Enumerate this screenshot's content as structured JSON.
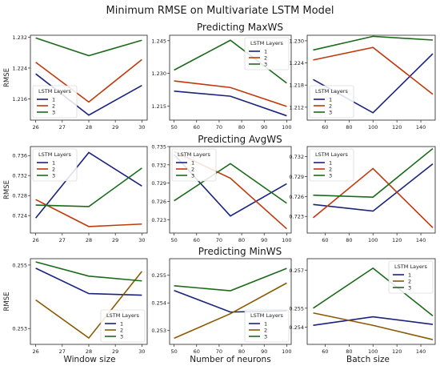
{
  "title": "Minimum RMSE on Multivariate LSTM Model",
  "row_titles": [
    "Predicting MaxWS",
    "Predicting AvgWS",
    "Predicting MinWS"
  ],
  "xlabels": [
    "Window size",
    "Number of neurons",
    "Batch size"
  ],
  "ylabel": "RMSE",
  "legend_title": "LSTM Layers",
  "colors": {
    "1": "#1a237e",
    "2": "#c0390b",
    "3": "#1b6b1b"
  },
  "colors_row3": {
    "1": "#1a237e",
    "2": "#8b5a00",
    "3": "#1b6b1b"
  },
  "chart_data": [
    {
      "type": "line",
      "row": 0,
      "col": 0,
      "x": [
        26,
        28,
        30
      ],
      "xlim": [
        25.8,
        30.2
      ],
      "ylim": [
        1.2105,
        1.2325
      ],
      "yticks": [
        "1.216",
        "1.224",
        "1.232"
      ],
      "xticks": [
        "26",
        "27",
        "28",
        "29",
        "30"
      ],
      "legend": "lower-left",
      "series": [
        {
          "name": "1",
          "values": [
            1.2225,
            1.2118,
            1.2195
          ]
        },
        {
          "name": "2",
          "values": [
            1.2255,
            1.2152,
            1.2262
          ]
        },
        {
          "name": "3",
          "values": [
            1.2318,
            1.2272,
            1.2312
          ]
        }
      ]
    },
    {
      "type": "line",
      "row": 0,
      "col": 1,
      "x": [
        50,
        75,
        100
      ],
      "xlim": [
        48,
        102
      ],
      "ylim": [
        1.2085,
        1.2475
      ],
      "yticks": [
        "1.215",
        "1.230",
        "1.245"
      ],
      "xticks": [
        "50",
        "60",
        "70",
        "80",
        "90",
        "100"
      ],
      "legend": "upper-right",
      "series": [
        {
          "name": "1",
          "values": [
            1.2218,
            1.2195,
            1.2105
          ]
        },
        {
          "name": "2",
          "values": [
            1.2265,
            1.2235,
            1.2148
          ]
        },
        {
          "name": "3",
          "values": [
            1.2315,
            1.2452,
            1.2255
          ]
        }
      ]
    },
    {
      "type": "line",
      "row": 0,
      "col": 2,
      "x": [
        50,
        100,
        150
      ],
      "xlim": [
        45,
        152
      ],
      "ylim": [
        1.2085,
        1.2315
      ],
      "yticks": [
        "1.212",
        "1.218",
        "1.224",
        "1.230"
      ],
      "xticks": [
        "60",
        "80",
        "100",
        "120",
        "140"
      ],
      "legend": "lower-left",
      "series": [
        {
          "name": "1",
          "values": [
            1.2195,
            1.2105,
            1.2265
          ]
        },
        {
          "name": "2",
          "values": [
            1.2248,
            1.2282,
            1.2155
          ]
        },
        {
          "name": "3",
          "values": [
            1.2275,
            1.2312,
            1.2302
          ]
        }
      ]
    },
    {
      "type": "line",
      "row": 1,
      "col": 0,
      "x": [
        26,
        28,
        30
      ],
      "xlim": [
        25.8,
        30.2
      ],
      "ylim": [
        0.7205,
        0.7378
      ],
      "yticks": [
        "0.724",
        "0.728",
        "0.732",
        "0.736"
      ],
      "xticks": [
        "26",
        "27",
        "28",
        "29",
        "30"
      ],
      "legend": "upper-left",
      "series": [
        {
          "name": "1",
          "values": [
            0.7235,
            0.7366,
            0.7299
          ]
        },
        {
          "name": "2",
          "values": [
            0.7272,
            0.7218,
            0.7223
          ]
        },
        {
          "name": "3",
          "values": [
            0.7261,
            0.7258,
            0.7335
          ]
        }
      ]
    },
    {
      "type": "line",
      "row": 1,
      "col": 1,
      "x": [
        50,
        75,
        100
      ],
      "xlim": [
        48,
        102
      ],
      "ylim": [
        0.7208,
        0.735
      ],
      "yticks": [
        "0.723",
        "0.726",
        "0.729",
        "0.732",
        "0.735"
      ],
      "xticks": [
        "50",
        "60",
        "70",
        "80",
        "90",
        "100"
      ],
      "legend": "upper-left",
      "series": [
        {
          "name": "1",
          "values": [
            0.7337,
            0.7236,
            0.7289
          ]
        },
        {
          "name": "2",
          "values": [
            0.7342,
            0.7298,
            0.7215
          ]
        },
        {
          "name": "3",
          "values": [
            0.7261,
            0.7322,
            0.7257
          ]
        }
      ]
    },
    {
      "type": "line",
      "row": 1,
      "col": 2,
      "x": [
        50,
        100,
        150
      ],
      "xlim": [
        45,
        152
      ],
      "ylim": [
        0.7205,
        0.7335
      ],
      "yticks": [
        "0.723",
        "0.726",
        "0.729",
        "0.732"
      ],
      "xticks": [
        "60",
        "80",
        "100",
        "120",
        "140"
      ],
      "legend": "upper-left",
      "series": [
        {
          "name": "1",
          "values": [
            0.7248,
            0.7238,
            0.7309
          ]
        },
        {
          "name": "2",
          "values": [
            0.7228,
            0.7302,
            0.7213
          ]
        },
        {
          "name": "3",
          "values": [
            0.7262,
            0.7259,
            0.7332
          ]
        }
      ]
    },
    {
      "type": "line",
      "row": 2,
      "col": 0,
      "x": [
        26,
        28,
        30
      ],
      "xlim": [
        25.8,
        30.2
      ],
      "ylim": [
        0.2525,
        0.2552
      ],
      "yticks": [
        "0.253",
        "0.255"
      ],
      "xticks": [
        "26",
        "27",
        "28",
        "29",
        "30"
      ],
      "legend": "lower-right",
      "series": [
        {
          "name": "1",
          "values": [
            0.2549,
            0.2541,
            0.25405
          ]
        },
        {
          "name": "2",
          "values": [
            0.2539,
            0.2527,
            0.2548
          ]
        },
        {
          "name": "3",
          "values": [
            0.2551,
            0.25465,
            0.2545
          ]
        }
      ]
    },
    {
      "type": "line",
      "row": 2,
      "col": 1,
      "x": [
        50,
        75,
        100
      ],
      "xlim": [
        48,
        102
      ],
      "ylim": [
        0.2525,
        0.2556
      ],
      "yticks": [
        "0.253",
        "0.254",
        "0.255"
      ],
      "xticks": [
        "50",
        "60",
        "70",
        "80",
        "90",
        "100"
      ],
      "legend": "lower-right",
      "series": [
        {
          "name": "1",
          "values": [
            0.25445,
            0.25367,
            0.25371
          ]
        },
        {
          "name": "2",
          "values": [
            0.25272,
            0.25361,
            0.25472
          ]
        },
        {
          "name": "3",
          "values": [
            0.25462,
            0.25444,
            0.25525
          ]
        }
      ]
    },
    {
      "type": "line",
      "row": 2,
      "col": 2,
      "x": [
        50,
        100,
        150
      ],
      "xlim": [
        45,
        152
      ],
      "ylim": [
        0.2531,
        0.2576
      ],
      "yticks": [
        "0.254",
        "0.255",
        "0.257"
      ],
      "xticks": [
        "60",
        "80",
        "100",
        "120",
        "140"
      ],
      "legend": "upper-right",
      "series": [
        {
          "name": "1",
          "values": [
            0.2541,
            0.25455,
            0.25415
          ]
        },
        {
          "name": "2",
          "values": [
            0.25475,
            0.2541,
            0.25335
          ]
        },
        {
          "name": "3",
          "values": [
            0.255,
            0.2571,
            0.2546
          ]
        }
      ]
    }
  ]
}
